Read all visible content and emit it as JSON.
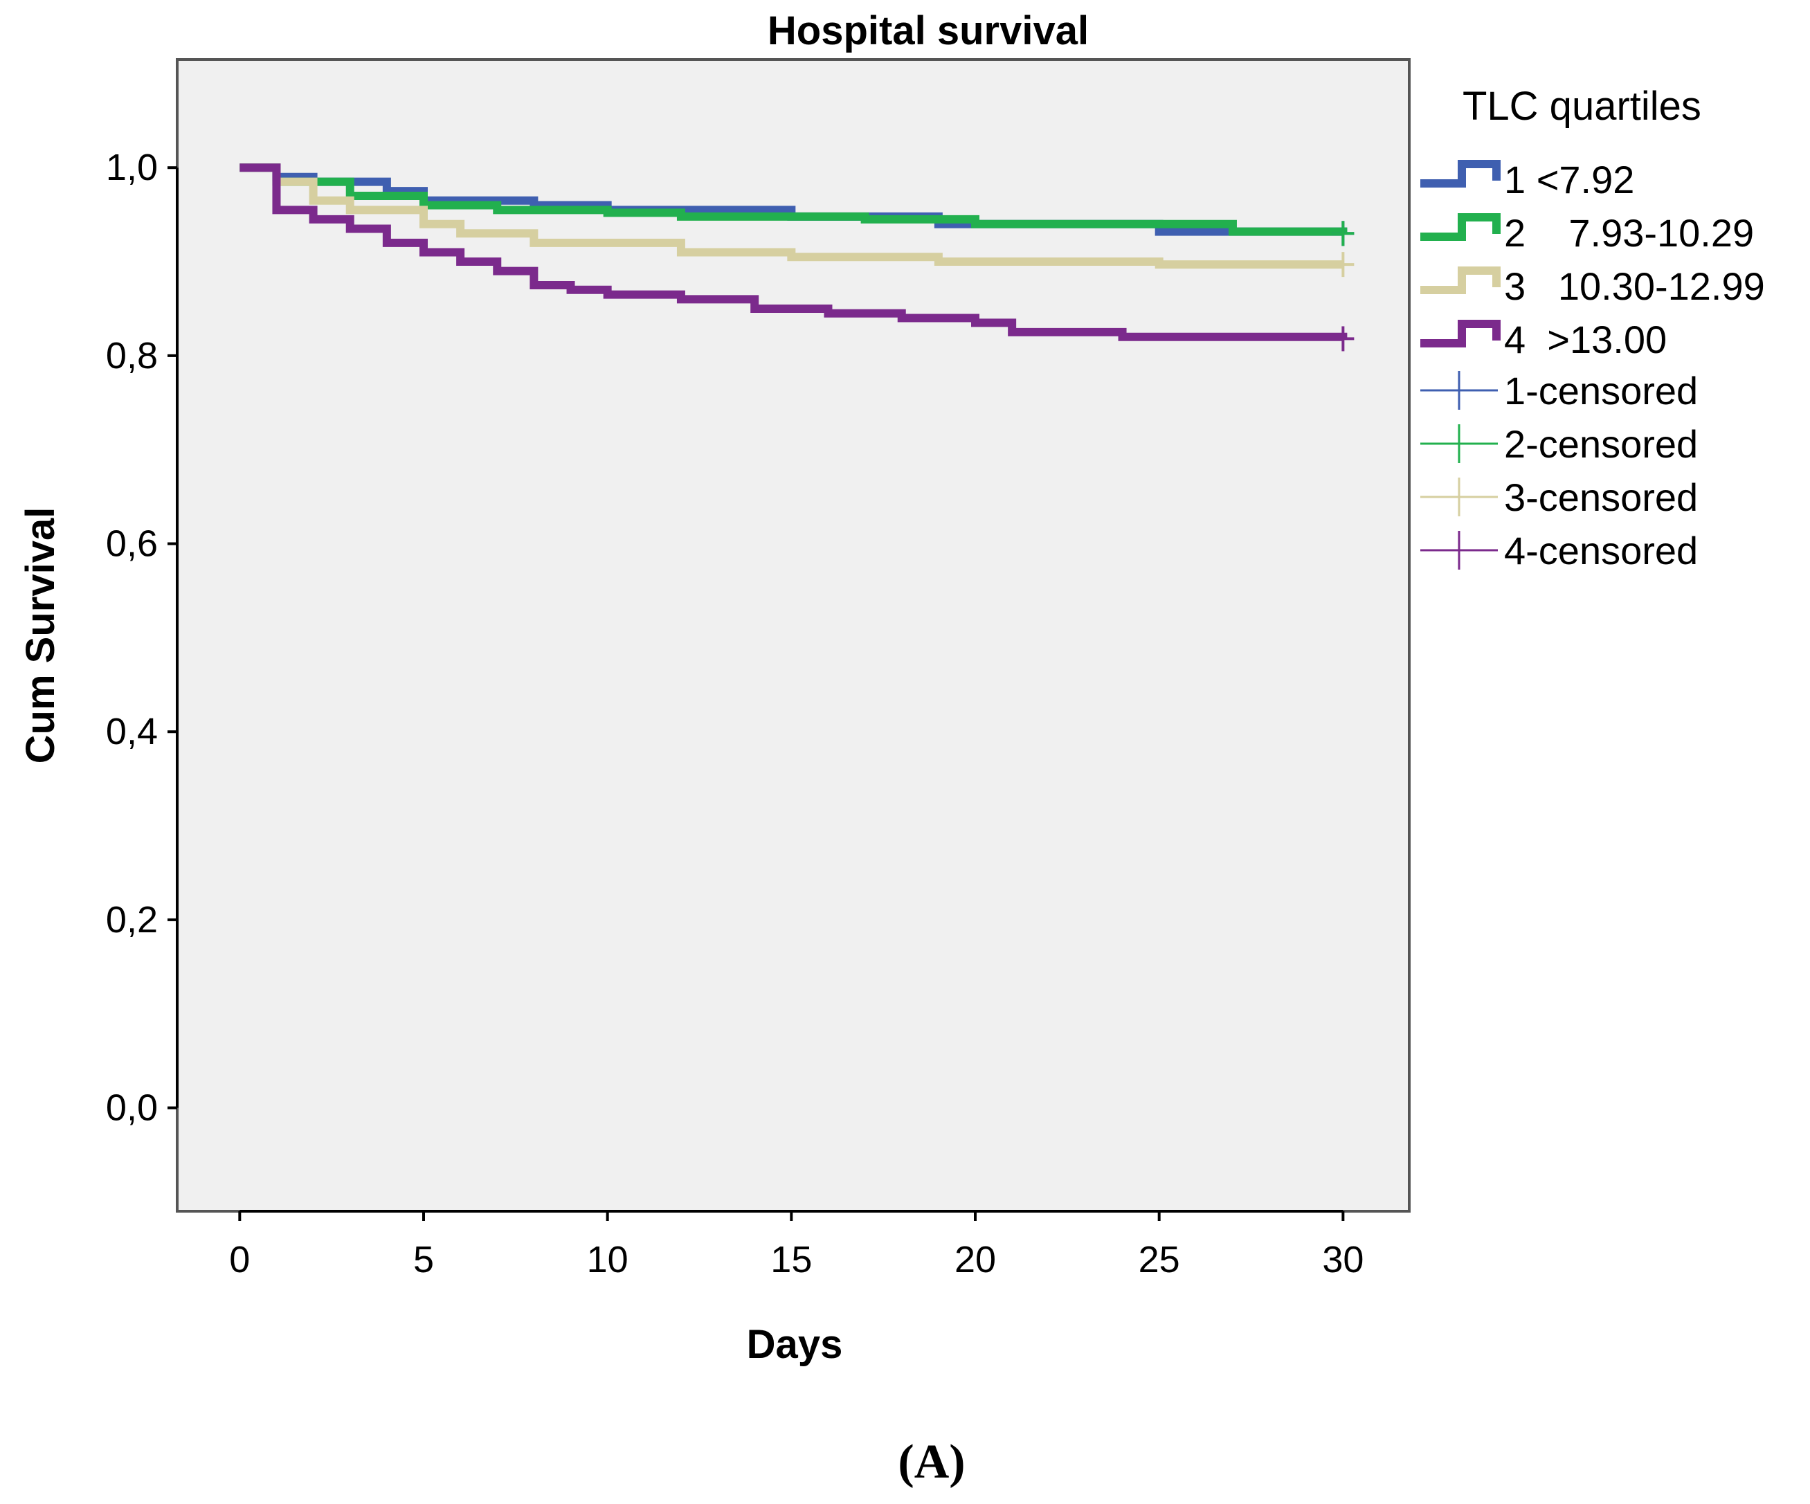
{
  "chart_data": {
    "type": "line",
    "subtype": "kaplan-meier-step",
    "title": "Hospital survival",
    "xlabel": "Days",
    "ylabel": "Cum Survival",
    "xlim": [
      -1.7,
      31.8
    ],
    "ylim": [
      -0.11,
      1.115
    ],
    "x_ticks": [
      0,
      5,
      10,
      15,
      20,
      25,
      30
    ],
    "y_ticks": [
      0.0,
      0.2,
      0.4,
      0.6,
      0.8,
      1.0
    ],
    "y_tick_labels": [
      "0,0",
      "0,2",
      "0,4",
      "0,6",
      "0,8",
      "1,0"
    ],
    "grid": false,
    "legend_title": "TLC quartiles",
    "legend_position": "right",
    "panel_label": "(A)",
    "series": [
      {
        "name": "1 <7.92",
        "color": "#3f5fb0",
        "x": [
          0,
          1,
          2,
          4,
          5,
          8,
          10,
          15,
          19,
          25,
          30
        ],
        "y": [
          1.0,
          0.99,
          0.985,
          0.975,
          0.965,
          0.96,
          0.955,
          0.948,
          0.94,
          0.932,
          0.93
        ]
      },
      {
        "name": "2    7.93-10.29",
        "color": "#22b04e",
        "x": [
          0,
          1,
          3,
          5,
          7,
          10,
          12,
          17,
          20,
          27,
          30
        ],
        "y": [
          1.0,
          0.985,
          0.97,
          0.96,
          0.955,
          0.952,
          0.948,
          0.945,
          0.94,
          0.932,
          0.93
        ]
      },
      {
        "name": "3   10.30-12.99",
        "color": "#d6cfa0",
        "x": [
          0,
          1,
          2,
          3,
          5,
          6,
          8,
          12,
          15,
          19,
          25,
          30
        ],
        "y": [
          1.0,
          0.985,
          0.965,
          0.955,
          0.94,
          0.93,
          0.92,
          0.91,
          0.905,
          0.9,
          0.897,
          0.897
        ]
      },
      {
        "name": "4  >13.00",
        "color": "#7b2a8c",
        "x": [
          0,
          1,
          2,
          3,
          4,
          5,
          6,
          7,
          8,
          9,
          10,
          12,
          14,
          16,
          18,
          20,
          21,
          24,
          30
        ],
        "y": [
          1.0,
          0.955,
          0.945,
          0.935,
          0.92,
          0.91,
          0.9,
          0.89,
          0.875,
          0.87,
          0.865,
          0.86,
          0.85,
          0.845,
          0.84,
          0.835,
          0.825,
          0.82,
          0.818
        ]
      }
    ],
    "censored": [
      {
        "name": "1-censored",
        "color": "#3f5fb0",
        "x": [
          30
        ],
        "y": [
          0.93
        ]
      },
      {
        "name": "2-censored",
        "color": "#22b04e",
        "x": [
          30
        ],
        "y": [
          0.93
        ]
      },
      {
        "name": "3-censored",
        "color": "#d6cfa0",
        "x": [
          30
        ],
        "y": [
          0.897
        ]
      },
      {
        "name": "4-censored",
        "color": "#7b2a8c",
        "x": [
          30
        ],
        "y": [
          0.818
        ]
      }
    ]
  }
}
